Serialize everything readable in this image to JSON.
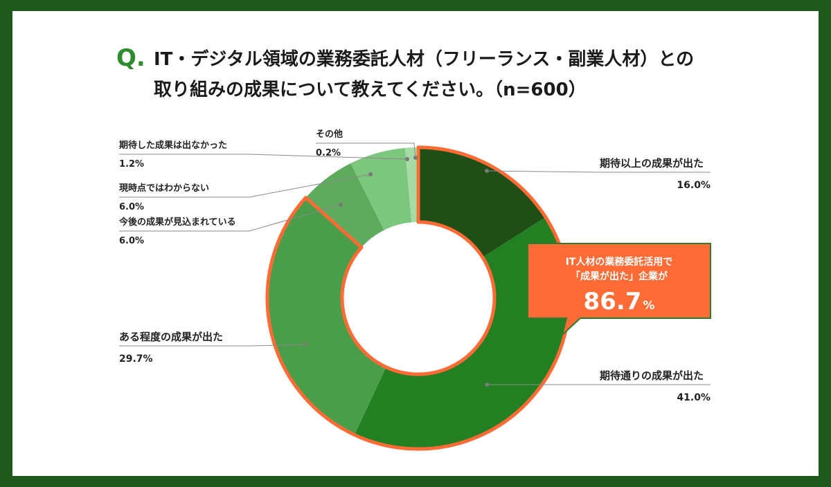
{
  "title": {
    "q_mark": "Q.",
    "line1": "IT・デジタル領域の業務委託人材（フリーランス・副業人材）との",
    "line2": "取り組みの成果について教えてください。（n=600）"
  },
  "callout": {
    "line1": "IT人材の業務委託活用で",
    "line2": "「成果が出た」企業が",
    "value": "86.7",
    "unit": "%"
  },
  "colors": {
    "background": "#1e5a1e",
    "highlight_border": "#ff6b35",
    "callout_fill": "#ff6b35"
  },
  "chart_data": {
    "type": "pie",
    "donut": true,
    "slices": [
      {
        "label": "期待以上の成果が出た",
        "value": 16.0,
        "pct_text": "16.0%",
        "color": "#1f4f16"
      },
      {
        "label": "期待通りの成果が出た",
        "value": 41.0,
        "pct_text": "41.0%",
        "color": "#228022"
      },
      {
        "label": "ある程度の成果が出た",
        "value": 29.7,
        "pct_text": "29.7%",
        "color": "#4a9e4a"
      },
      {
        "label": "今後の成果が見込まれている",
        "value": 6.0,
        "pct_text": "6.0%",
        "color": "#5eab5e"
      },
      {
        "label": "現時点ではわからない",
        "value": 6.0,
        "pct_text": "6.0%",
        "color": "#7dc67d"
      },
      {
        "label": "期待した成果は出なかった",
        "value": 1.2,
        "pct_text": "1.2%",
        "color": "#a5dca5"
      },
      {
        "label": "その他",
        "value": 0.2,
        "pct_text": "0.2%",
        "color": "#c8ecc8"
      }
    ],
    "highlighted_group": [
      "期待以上の成果が出た",
      "期待通りの成果が出た",
      "ある程度の成果が出た"
    ],
    "highlighted_total_percent": 86.7
  }
}
